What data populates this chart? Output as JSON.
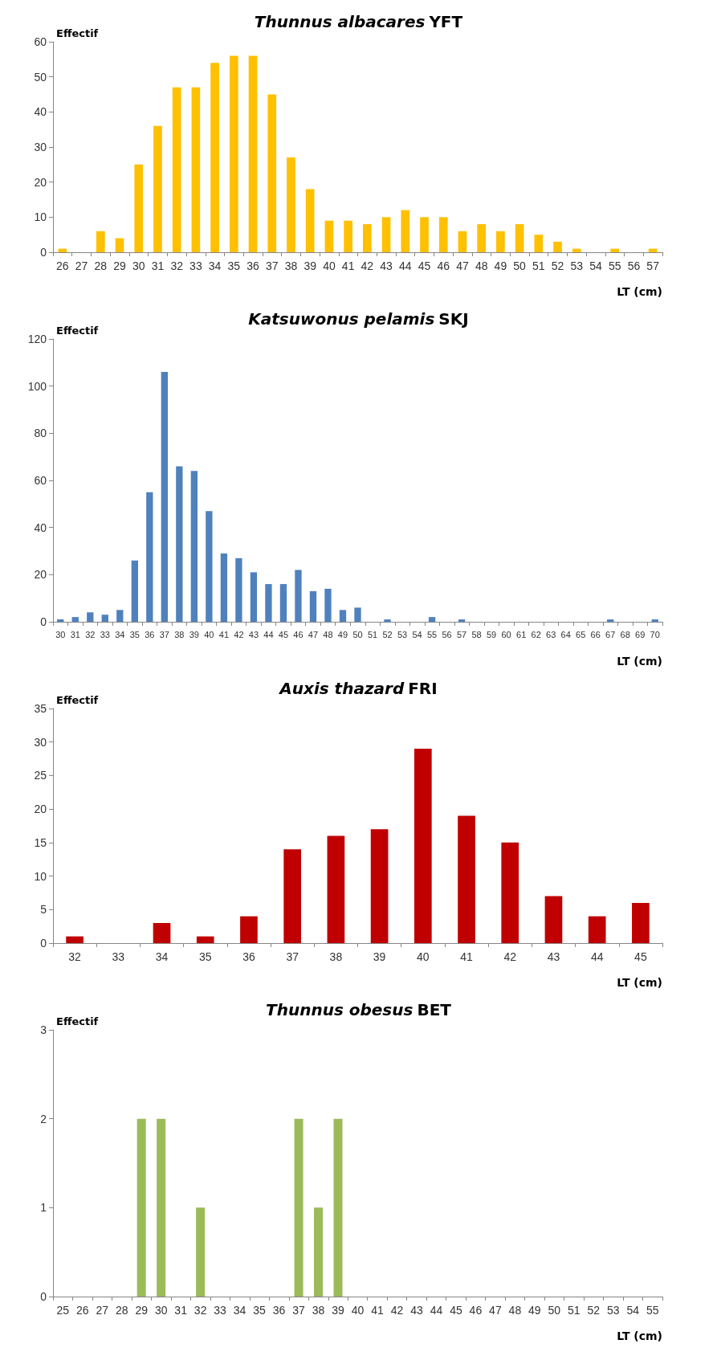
{
  "chart_data": [
    {
      "type": "bar",
      "title": "Thunnus albacares YFT",
      "ylabel": "Effectif",
      "xlabel": "LT (cm)",
      "categories": [
        "26",
        "27",
        "28",
        "29",
        "30",
        "31",
        "32",
        "33",
        "34",
        "35",
        "36",
        "37",
        "38",
        "39",
        "40",
        "41",
        "42",
        "43",
        "44",
        "45",
        "46",
        "47",
        "48",
        "49",
        "50",
        "51",
        "52",
        "53",
        "54",
        "55",
        "56",
        "57"
      ],
      "series": [
        {
          "color": "#ffc000",
          "values": [
            1,
            0,
            6,
            4,
            25,
            36,
            47,
            47,
            54,
            56,
            56,
            45,
            27,
            18,
            9,
            9,
            8,
            10,
            12,
            10,
            10,
            6,
            8,
            6,
            8,
            5,
            3,
            1,
            0,
            1,
            0,
            1
          ]
        }
      ],
      "ylim": [
        0,
        60
      ],
      "yticks": [
        0,
        10,
        20,
        30,
        40,
        50,
        60
      ],
      "grid": false
    },
    {
      "type": "bar",
      "title": "Katsuwonus pelamis SKJ",
      "ylabel": "Effectif",
      "xlabel": "LT (cm)",
      "categories": [
        "30",
        "31",
        "32",
        "33",
        "34",
        "35",
        "36",
        "37",
        "38",
        "39",
        "40",
        "41",
        "42",
        "43",
        "44",
        "45",
        "46",
        "47",
        "48",
        "49",
        "50",
        "51",
        "52",
        "53",
        "54",
        "55",
        "56",
        "57",
        "58",
        "59",
        "60",
        "61",
        "62",
        "63",
        "64",
        "65",
        "66",
        "67",
        "68",
        "69",
        "70"
      ],
      "series": [
        {
          "color": "#4f81bd",
          "values": [
            1,
            2,
            4,
            3,
            5,
            26,
            55,
            106,
            66,
            64,
            47,
            29,
            27,
            21,
            16,
            16,
            22,
            13,
            14,
            5,
            6,
            0,
            1,
            0,
            0,
            2,
            0,
            1,
            0,
            0,
            0,
            0,
            0,
            0,
            0,
            0,
            0,
            1,
            0,
            0,
            1
          ]
        }
      ],
      "ylim": [
        0,
        120
      ],
      "yticks": [
        0,
        20,
        40,
        60,
        80,
        100,
        120
      ],
      "grid": false
    },
    {
      "type": "bar",
      "title": "Auxis thazard FRI",
      "ylabel": "Effectif",
      "xlabel": "LT (cm)",
      "categories": [
        "32",
        "33",
        "34",
        "35",
        "36",
        "37",
        "38",
        "39",
        "40",
        "41",
        "42",
        "43",
        "44",
        "45"
      ],
      "series": [
        {
          "color": "#c00000",
          "values": [
            1,
            0,
            3,
            1,
            4,
            14,
            16,
            17,
            29,
            19,
            15,
            7,
            4,
            6
          ]
        }
      ],
      "ylim": [
        0,
        35
      ],
      "yticks": [
        0,
        5,
        10,
        15,
        20,
        25,
        30,
        35
      ],
      "grid": false
    },
    {
      "type": "bar",
      "title": "Thunnus obesus BET",
      "ylabel": "Effectif",
      "xlabel": "LT (cm)",
      "categories": [
        "25",
        "26",
        "27",
        "28",
        "29",
        "30",
        "31",
        "32",
        "33",
        "34",
        "35",
        "36",
        "37",
        "38",
        "39",
        "40",
        "41",
        "42",
        "43",
        "44",
        "45",
        "46",
        "47",
        "48",
        "49",
        "50",
        "51",
        "52",
        "53",
        "54",
        "55"
      ],
      "series": [
        {
          "color": "#9bbb59",
          "values": [
            0,
            0,
            0,
            0,
            2,
            2,
            0,
            1,
            0,
            0,
            0,
            0,
            2,
            1,
            2,
            0,
            0,
            0,
            0,
            0,
            0,
            0,
            0,
            0,
            0,
            0,
            0,
            0,
            0,
            0,
            0
          ]
        }
      ],
      "ylim": [
        0,
        3
      ],
      "yticks": [
        0,
        1,
        2,
        3
      ],
      "grid": false
    }
  ]
}
